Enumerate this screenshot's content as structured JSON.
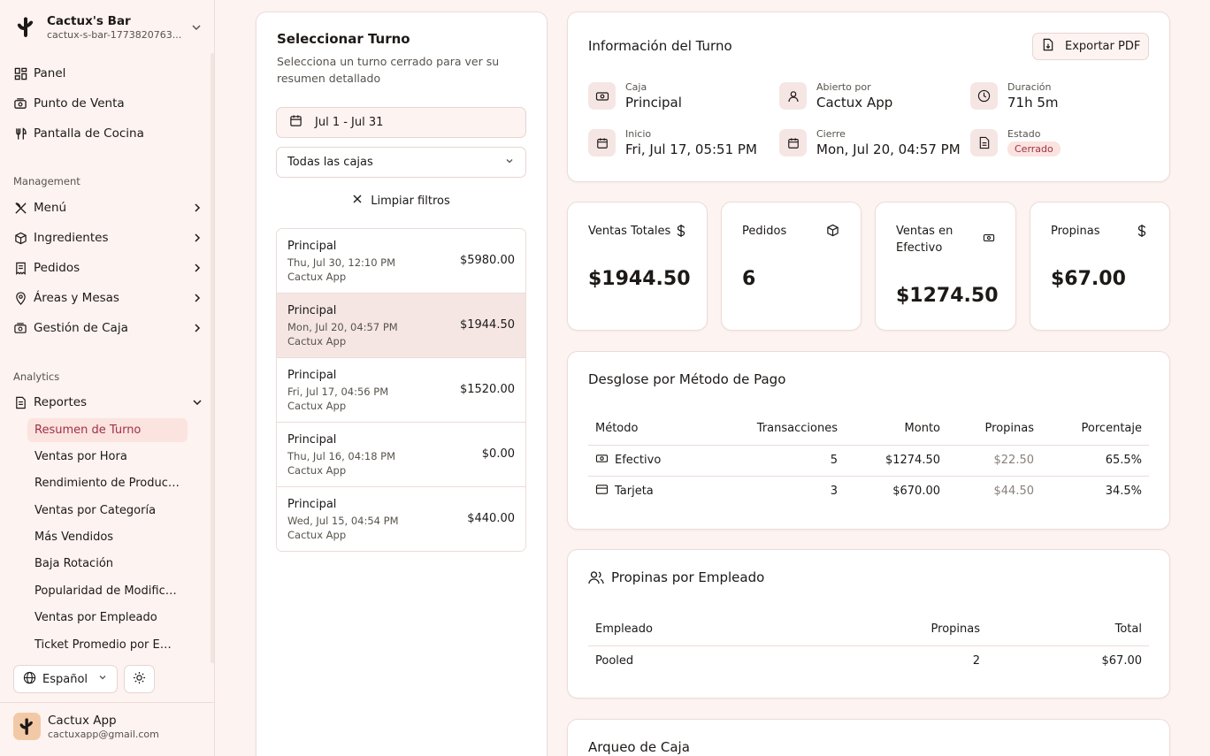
{
  "sidebar": {
    "brand_name": "Cactux's Bar",
    "brand_sub": "cactux-s-bar-1773820763...",
    "main_items": [
      {
        "label": "Panel",
        "icon": "dashboard-icon"
      },
      {
        "label": "Punto de Venta",
        "icon": "cash-register-icon"
      },
      {
        "label": "Pantalla de Cocina",
        "icon": "kitchen-icon"
      }
    ],
    "management_label": "Management",
    "management_items": [
      {
        "label": "Menú",
        "icon": "utensils-icon"
      },
      {
        "label": "Ingredientes",
        "icon": "package-icon"
      },
      {
        "label": "Pedidos",
        "icon": "receipt-icon"
      },
      {
        "label": "Áreas y Mesas",
        "icon": "map-pin-icon"
      },
      {
        "label": "Gestión de Caja",
        "icon": "cash-drawer-icon"
      }
    ],
    "analytics_label": "Analytics",
    "reports_label": "Reportes",
    "report_items": [
      "Resumen de Turno",
      "Ventas por Hora",
      "Rendimiento de Productos",
      "Ventas por Categoría",
      "Más Vendidos",
      "Baja Rotación",
      "Popularidad de Modificad...",
      "Ventas por Empleado",
      "Ticket Promedio por Empl..."
    ],
    "language": "Español",
    "user_name": "Cactux App",
    "user_email": "cactuxapp@gmail.com"
  },
  "selector": {
    "title": "Seleccionar Turno",
    "subtitle": "Selecciona un turno cerrado para ver su resumen detallado",
    "date_range": "Jul 1 - Jul 31",
    "register_select": "Todas las cajas",
    "clear_filters": "Limpiar filtros",
    "shifts": [
      {
        "title": "Principal",
        "date": "Thu, Jul 30, 12:10 PM",
        "user": "Cactux App",
        "amount": "$5980.00"
      },
      {
        "title": "Principal",
        "date": "Mon, Jul 20, 04:57 PM",
        "user": "Cactux App",
        "amount": "$1944.50"
      },
      {
        "title": "Principal",
        "date": "Fri, Jul 17, 04:56 PM",
        "user": "Cactux App",
        "amount": "$1520.00"
      },
      {
        "title": "Principal",
        "date": "Thu, Jul 16, 04:18 PM",
        "user": "Cactux App",
        "amount": "$0.00"
      },
      {
        "title": "Principal",
        "date": "Wed, Jul 15, 04:54 PM",
        "user": "Cactux App",
        "amount": "$440.00"
      }
    ]
  },
  "info": {
    "title": "Información del Turno",
    "export_label": "Exportar PDF",
    "items": [
      {
        "label": "Caja",
        "value": "Principal",
        "icon": "cash-icon"
      },
      {
        "label": "Abierto por",
        "value": "Cactux App",
        "icon": "user-icon"
      },
      {
        "label": "Duración",
        "value": "71h 5m",
        "icon": "clock-icon"
      },
      {
        "label": "Inicio",
        "value": "Fri, Jul 17, 05:51 PM",
        "icon": "calendar-icon"
      },
      {
        "label": "Cierre",
        "value": "Mon, Jul 20, 04:57 PM",
        "icon": "calendar-icon"
      },
      {
        "label": "Estado",
        "value": "Cerrado",
        "icon": "document-icon"
      }
    ]
  },
  "stats": [
    {
      "label": "Ventas Totales",
      "value": "$1944.50",
      "icon": "dollar-icon"
    },
    {
      "label": "Pedidos",
      "value": "6",
      "icon": "package-icon"
    },
    {
      "label": "Ventas en Efectivo",
      "value": "$1274.50",
      "icon": "cash-icon"
    },
    {
      "label": "Propinas",
      "value": "$67.00",
      "icon": "dollar-icon"
    }
  ],
  "payments": {
    "title": "Desglose por Método de Pago",
    "headers": [
      "Método",
      "Transacciones",
      "Monto",
      "Propinas",
      "Porcentaje"
    ],
    "rows": [
      {
        "method": "Efectivo",
        "icon": "cash-icon",
        "transactions": "5",
        "amount": "$1274.50",
        "tips": "$22.50",
        "percent": "65.5%"
      },
      {
        "method": "Tarjeta",
        "icon": "credit-card-icon",
        "transactions": "3",
        "amount": "$670.00",
        "tips": "$44.50",
        "percent": "34.5%"
      }
    ]
  },
  "tips": {
    "title": "Propinas por Empleado",
    "headers": [
      "Empleado",
      "Propinas",
      "Total"
    ],
    "rows": [
      {
        "employee": "Pooled",
        "tips": "2",
        "total": "$67.00"
      }
    ]
  },
  "cash_count": {
    "title": "Arqueo de Caja"
  },
  "colors": {
    "background": "#fdf3f1",
    "accent": "#a0304a",
    "active_bg": "#fbe3df",
    "border": "#ecdcd8"
  }
}
